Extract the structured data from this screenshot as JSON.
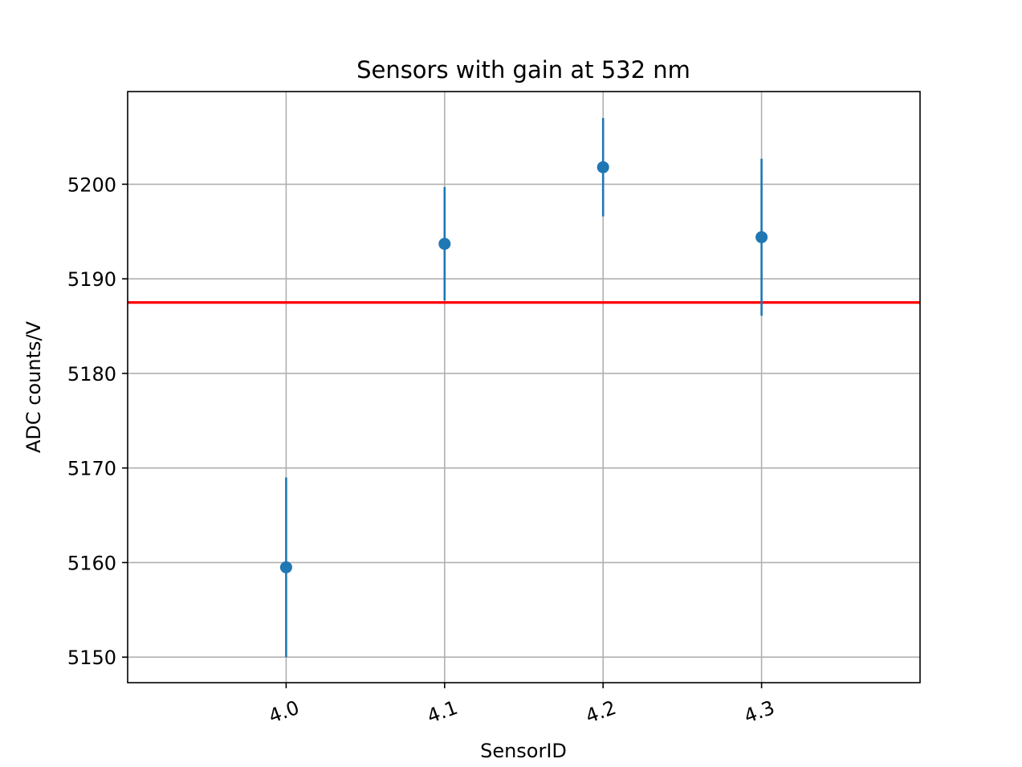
{
  "chart_data": {
    "type": "scatter",
    "title": "Sensors with gain at 532 nm",
    "xlabel": "SensorID",
    "ylabel": "ADC counts/V",
    "categories": [
      "4.0",
      "4.1",
      "4.2",
      "4.3"
    ],
    "values": [
      5159.5,
      5193.7,
      5201.8,
      5194.4
    ],
    "errors": [
      9.5,
      6.0,
      5.2,
      8.3
    ],
    "reference_line": 5187.5,
    "ylim": [
      5147.3,
      5209.8
    ],
    "x_range_categories": [
      -1.0,
      4.0
    ],
    "yticks": [
      5150,
      5160,
      5170,
      5180,
      5190,
      5200
    ],
    "grid": true,
    "colors": {
      "points": "#1f77b4",
      "reference_line": "#ff0000",
      "grid": "#b0b0b0"
    }
  }
}
